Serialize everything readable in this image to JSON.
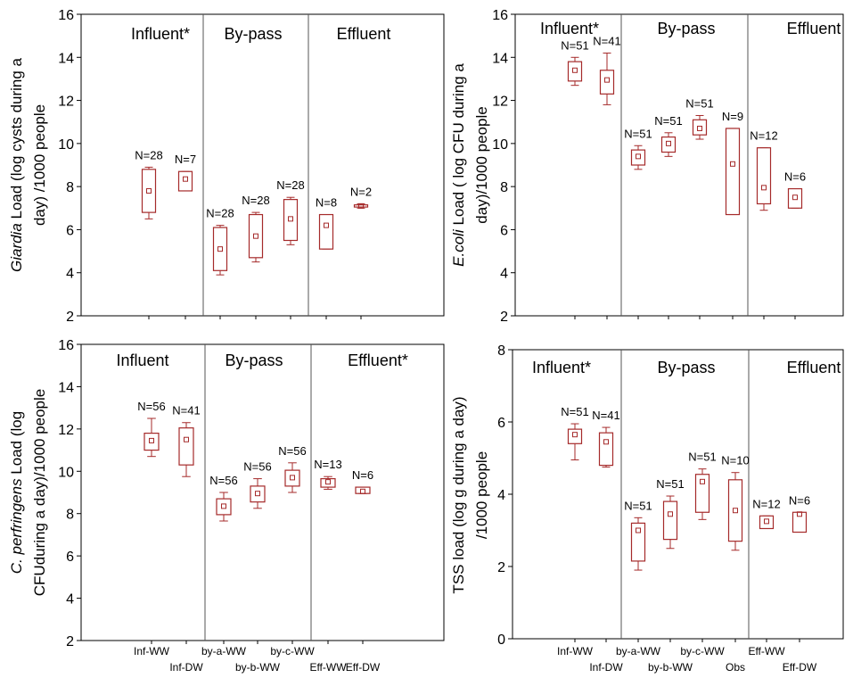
{
  "color": "#a52a2a",
  "chart_data": [
    {
      "type": "box",
      "ylabel_italic": "Giardia",
      "ylabel_rest": " Load (log cysts during a",
      "ylabel_line2": "day) /1000 people",
      "ylim": [
        2,
        16
      ],
      "yticks": [
        "2",
        "4",
        "6",
        "8",
        "10",
        "12",
        "14",
        "16"
      ],
      "sections": [
        "Influent*",
        "By-pass",
        "Effluent"
      ],
      "boxes": [
        {
          "n": "N=28",
          "mean": 7.8,
          "q1": 6.8,
          "q3": 8.8,
          "min": 6.5,
          "max": 8.9
        },
        {
          "n": "N=7",
          "mean": 8.35,
          "q1": 7.8,
          "q3": 8.7,
          "min": 7.8,
          "max": 8.7
        },
        {
          "n": "N=28",
          "mean": 5.1,
          "q1": 4.1,
          "q3": 6.1,
          "min": 3.9,
          "max": 6.2
        },
        {
          "n": "N=28",
          "mean": 5.7,
          "q1": 4.7,
          "q3": 6.7,
          "min": 4.5,
          "max": 6.8
        },
        {
          "n": "N=28",
          "mean": 6.5,
          "q1": 5.5,
          "q3": 7.4,
          "min": 5.3,
          "max": 7.5
        },
        {
          "n": "N=8",
          "mean": 6.2,
          "q1": 5.1,
          "q3": 6.7,
          "min": 5.1,
          "max": 6.7
        },
        {
          "n": "N=2",
          "mean": 7.1,
          "q1": 7.05,
          "q3": 7.15,
          "min": 7.0,
          "max": 7.2
        }
      ]
    },
    {
      "type": "box",
      "ylabel_italic": "E.coli",
      "ylabel_rest": " Load ( log CFU during a",
      "ylabel_line2": "day)/1000 people",
      "ylim": [
        2,
        16
      ],
      "yticks": [
        "2",
        "4",
        "6",
        "8",
        "10",
        "12",
        "14",
        "16"
      ],
      "sections": [
        "Influent*",
        "By-pass",
        "Effluent"
      ],
      "boxes": [
        {
          "n": "N=51",
          "mean": 13.4,
          "q1": 12.9,
          "q3": 13.8,
          "min": 12.7,
          "max": 14.0
        },
        {
          "n": "N=41",
          "mean": 12.95,
          "q1": 12.3,
          "q3": 13.4,
          "min": 11.8,
          "max": 14.2
        },
        {
          "n": "N=51",
          "mean": 9.4,
          "q1": 9.0,
          "q3": 9.7,
          "min": 8.8,
          "max": 9.9
        },
        {
          "n": "N=51",
          "mean": 10.0,
          "q1": 9.6,
          "q3": 10.3,
          "min": 9.4,
          "max": 10.5
        },
        {
          "n": "N=51",
          "mean": 10.7,
          "q1": 10.4,
          "q3": 11.1,
          "min": 10.2,
          "max": 11.3
        },
        {
          "n": "N=9",
          "mean": 9.05,
          "q1": 6.7,
          "q3": 10.7,
          "min": 6.7,
          "max": 10.7
        },
        {
          "n": "N=12",
          "mean": 7.95,
          "q1": 7.2,
          "q3": 9.8,
          "min": 6.9,
          "max": 9.8
        },
        {
          "n": "N=6",
          "mean": 7.5,
          "q1": 7.0,
          "q3": 7.9,
          "min": 7.0,
          "max": 7.9
        }
      ]
    },
    {
      "type": "box",
      "ylabel_italic": "C. perfringens",
      "ylabel_rest": " Load (log",
      "ylabel_line2": "CFUduring a day)/1000 people",
      "ylim": [
        2,
        16
      ],
      "yticks": [
        "2",
        "4",
        "6",
        "8",
        "10",
        "12",
        "14",
        "16"
      ],
      "sections": [
        "Influent",
        "By-pass",
        "Effluent*"
      ],
      "boxes": [
        {
          "n": "N=56",
          "mean": 11.45,
          "q1": 11.0,
          "q3": 11.8,
          "min": 10.7,
          "max": 12.5
        },
        {
          "n": "N=41",
          "mean": 11.5,
          "q1": 10.3,
          "q3": 12.05,
          "min": 9.75,
          "max": 12.3
        },
        {
          "n": "N=56",
          "mean": 8.35,
          "q1": 7.95,
          "q3": 8.7,
          "min": 7.65,
          "max": 9.0
        },
        {
          "n": "N=56",
          "mean": 8.95,
          "q1": 8.55,
          "q3": 9.3,
          "min": 8.25,
          "max": 9.65
        },
        {
          "n": "N=56",
          "mean": 9.7,
          "q1": 9.3,
          "q3": 10.05,
          "min": 9.0,
          "max": 10.4
        },
        {
          "n": "N=13",
          "mean": 9.5,
          "q1": 9.25,
          "q3": 9.65,
          "min": 9.15,
          "max": 9.75
        },
        {
          "n": "N=6",
          "mean": 9.05,
          "q1": 8.95,
          "q3": 9.25,
          "min": 8.95,
          "max": 9.25
        }
      ],
      "categories_top": [
        "Inf-WW",
        "by-a-WW",
        "by-c-WW"
      ],
      "categories_bottom": [
        "Inf-DW",
        "by-b-WW",
        "Eff-WW",
        "Eff-DW"
      ]
    },
    {
      "type": "box",
      "ylabel_italic": "",
      "ylabel_rest": "TSS load (log g during a day)",
      "ylabel_line2": "/1000 people",
      "ylim": [
        0,
        8
      ],
      "yticks": [
        "0",
        "2",
        "4",
        "6",
        "8"
      ],
      "sections": [
        "Influent*",
        "By-pass",
        "Effluent"
      ],
      "boxes": [
        {
          "n": "N=51",
          "mean": 5.65,
          "q1": 5.4,
          "q3": 5.8,
          "min": 4.95,
          "max": 5.95
        },
        {
          "n": "N=41",
          "mean": 5.45,
          "q1": 4.8,
          "q3": 5.7,
          "min": 4.75,
          "max": 5.85
        },
        {
          "n": "N=51",
          "mean": 3.0,
          "q1": 2.15,
          "q3": 3.2,
          "min": 1.9,
          "max": 3.35
        },
        {
          "n": "N=51",
          "mean": 3.45,
          "q1": 2.75,
          "q3": 3.8,
          "min": 2.5,
          "max": 3.95
        },
        {
          "n": "N=51",
          "mean": 4.35,
          "q1": 3.5,
          "q3": 4.55,
          "min": 3.3,
          "max": 4.7
        },
        {
          "n": "N=10",
          "mean": 3.55,
          "q1": 2.7,
          "q3": 4.4,
          "min": 2.45,
          "max": 4.6
        },
        {
          "n": "N=12",
          "mean": 3.25,
          "q1": 3.05,
          "q3": 3.4,
          "min": 3.05,
          "max": 3.4
        },
        {
          "n": "N=6",
          "mean": 3.45,
          "q1": 2.95,
          "q3": 3.5,
          "min": 2.95,
          "max": 3.5
        }
      ],
      "categories_top": [
        "Inf-WW",
        "by-a-WW",
        "by-c-WW",
        "Eff-WW"
      ],
      "categories_bottom": [
        "Inf-DW",
        "by-b-WW",
        "Obs",
        "Eff-DW"
      ]
    }
  ]
}
